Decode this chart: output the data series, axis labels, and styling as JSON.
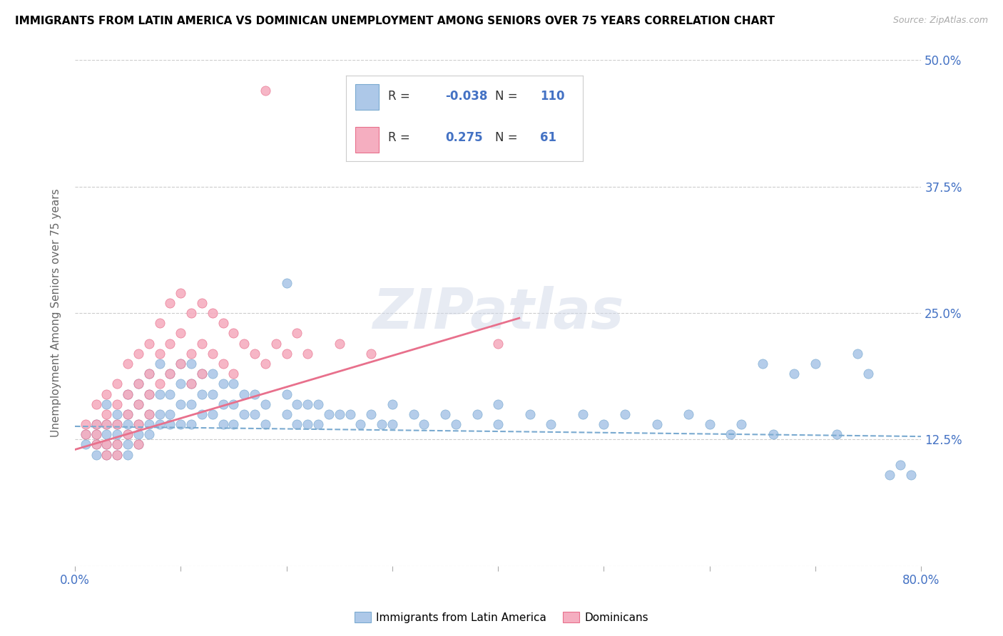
{
  "title": "IMMIGRANTS FROM LATIN AMERICA VS DOMINICAN UNEMPLOYMENT AMONG SENIORS OVER 75 YEARS CORRELATION CHART",
  "source": "Source: ZipAtlas.com",
  "ylabel": "Unemployment Among Seniors over 75 years",
  "xlim": [
    0.0,
    0.8
  ],
  "ylim": [
    0.0,
    0.5
  ],
  "R_blue": -0.038,
  "N_blue": 110,
  "R_pink": 0.275,
  "N_pink": 61,
  "blue_color": "#adc8e8",
  "pink_color": "#f5aec0",
  "blue_edge_color": "#7aaad0",
  "pink_edge_color": "#e8708c",
  "blue_line_color": "#7aaad0",
  "pink_line_color": "#e8708c",
  "legend_blue_label": "Immigrants from Latin America",
  "legend_pink_label": "Dominicans",
  "watermark": "ZIPatlas",
  "scatter_blue": [
    [
      0.01,
      0.13
    ],
    [
      0.01,
      0.12
    ],
    [
      0.02,
      0.14
    ],
    [
      0.02,
      0.13
    ],
    [
      0.02,
      0.12
    ],
    [
      0.02,
      0.11
    ],
    [
      0.03,
      0.16
    ],
    [
      0.03,
      0.14
    ],
    [
      0.03,
      0.13
    ],
    [
      0.03,
      0.12
    ],
    [
      0.03,
      0.11
    ],
    [
      0.04,
      0.15
    ],
    [
      0.04,
      0.14
    ],
    [
      0.04,
      0.13
    ],
    [
      0.04,
      0.12
    ],
    [
      0.04,
      0.11
    ],
    [
      0.05,
      0.17
    ],
    [
      0.05,
      0.15
    ],
    [
      0.05,
      0.14
    ],
    [
      0.05,
      0.13
    ],
    [
      0.05,
      0.12
    ],
    [
      0.05,
      0.11
    ],
    [
      0.06,
      0.18
    ],
    [
      0.06,
      0.16
    ],
    [
      0.06,
      0.14
    ],
    [
      0.06,
      0.13
    ],
    [
      0.06,
      0.12
    ],
    [
      0.07,
      0.19
    ],
    [
      0.07,
      0.17
    ],
    [
      0.07,
      0.15
    ],
    [
      0.07,
      0.14
    ],
    [
      0.07,
      0.13
    ],
    [
      0.08,
      0.2
    ],
    [
      0.08,
      0.17
    ],
    [
      0.08,
      0.15
    ],
    [
      0.08,
      0.14
    ],
    [
      0.09,
      0.19
    ],
    [
      0.09,
      0.17
    ],
    [
      0.09,
      0.15
    ],
    [
      0.09,
      0.14
    ],
    [
      0.1,
      0.2
    ],
    [
      0.1,
      0.18
    ],
    [
      0.1,
      0.16
    ],
    [
      0.1,
      0.14
    ],
    [
      0.11,
      0.2
    ],
    [
      0.11,
      0.18
    ],
    [
      0.11,
      0.16
    ],
    [
      0.11,
      0.14
    ],
    [
      0.12,
      0.19
    ],
    [
      0.12,
      0.17
    ],
    [
      0.12,
      0.15
    ],
    [
      0.13,
      0.19
    ],
    [
      0.13,
      0.17
    ],
    [
      0.13,
      0.15
    ],
    [
      0.14,
      0.18
    ],
    [
      0.14,
      0.16
    ],
    [
      0.14,
      0.14
    ],
    [
      0.15,
      0.18
    ],
    [
      0.15,
      0.16
    ],
    [
      0.15,
      0.14
    ],
    [
      0.16,
      0.17
    ],
    [
      0.16,
      0.15
    ],
    [
      0.17,
      0.17
    ],
    [
      0.17,
      0.15
    ],
    [
      0.18,
      0.16
    ],
    [
      0.18,
      0.14
    ],
    [
      0.2,
      0.28
    ],
    [
      0.2,
      0.17
    ],
    [
      0.2,
      0.15
    ],
    [
      0.21,
      0.16
    ],
    [
      0.21,
      0.14
    ],
    [
      0.22,
      0.16
    ],
    [
      0.22,
      0.14
    ],
    [
      0.23,
      0.16
    ],
    [
      0.23,
      0.14
    ],
    [
      0.24,
      0.15
    ],
    [
      0.25,
      0.15
    ],
    [
      0.26,
      0.15
    ],
    [
      0.27,
      0.14
    ],
    [
      0.28,
      0.15
    ],
    [
      0.29,
      0.14
    ],
    [
      0.3,
      0.16
    ],
    [
      0.3,
      0.14
    ],
    [
      0.32,
      0.15
    ],
    [
      0.33,
      0.14
    ],
    [
      0.35,
      0.15
    ],
    [
      0.36,
      0.14
    ],
    [
      0.38,
      0.15
    ],
    [
      0.4,
      0.16
    ],
    [
      0.4,
      0.14
    ],
    [
      0.43,
      0.15
    ],
    [
      0.45,
      0.14
    ],
    [
      0.48,
      0.15
    ],
    [
      0.5,
      0.14
    ],
    [
      0.52,
      0.15
    ],
    [
      0.55,
      0.14
    ],
    [
      0.58,
      0.15
    ],
    [
      0.6,
      0.14
    ],
    [
      0.62,
      0.13
    ],
    [
      0.63,
      0.14
    ],
    [
      0.65,
      0.2
    ],
    [
      0.66,
      0.13
    ],
    [
      0.68,
      0.19
    ],
    [
      0.7,
      0.2
    ],
    [
      0.72,
      0.13
    ],
    [
      0.74,
      0.21
    ],
    [
      0.75,
      0.19
    ],
    [
      0.77,
      0.09
    ],
    [
      0.78,
      0.1
    ],
    [
      0.79,
      0.09
    ]
  ],
  "scatter_pink": [
    [
      0.01,
      0.14
    ],
    [
      0.01,
      0.13
    ],
    [
      0.02,
      0.16
    ],
    [
      0.02,
      0.14
    ],
    [
      0.02,
      0.13
    ],
    [
      0.02,
      0.12
    ],
    [
      0.03,
      0.17
    ],
    [
      0.03,
      0.15
    ],
    [
      0.03,
      0.14
    ],
    [
      0.03,
      0.12
    ],
    [
      0.03,
      0.11
    ],
    [
      0.04,
      0.18
    ],
    [
      0.04,
      0.16
    ],
    [
      0.04,
      0.14
    ],
    [
      0.04,
      0.12
    ],
    [
      0.04,
      0.11
    ],
    [
      0.05,
      0.2
    ],
    [
      0.05,
      0.17
    ],
    [
      0.05,
      0.15
    ],
    [
      0.05,
      0.13
    ],
    [
      0.06,
      0.21
    ],
    [
      0.06,
      0.18
    ],
    [
      0.06,
      0.16
    ],
    [
      0.06,
      0.14
    ],
    [
      0.06,
      0.12
    ],
    [
      0.07,
      0.22
    ],
    [
      0.07,
      0.19
    ],
    [
      0.07,
      0.17
    ],
    [
      0.07,
      0.15
    ],
    [
      0.08,
      0.24
    ],
    [
      0.08,
      0.21
    ],
    [
      0.08,
      0.18
    ],
    [
      0.09,
      0.26
    ],
    [
      0.09,
      0.22
    ],
    [
      0.09,
      0.19
    ],
    [
      0.1,
      0.27
    ],
    [
      0.1,
      0.23
    ],
    [
      0.1,
      0.2
    ],
    [
      0.11,
      0.25
    ],
    [
      0.11,
      0.21
    ],
    [
      0.11,
      0.18
    ],
    [
      0.12,
      0.26
    ],
    [
      0.12,
      0.22
    ],
    [
      0.12,
      0.19
    ],
    [
      0.13,
      0.25
    ],
    [
      0.13,
      0.21
    ],
    [
      0.14,
      0.24
    ],
    [
      0.14,
      0.2
    ],
    [
      0.15,
      0.23
    ],
    [
      0.15,
      0.19
    ],
    [
      0.16,
      0.22
    ],
    [
      0.17,
      0.21
    ],
    [
      0.18,
      0.47
    ],
    [
      0.18,
      0.2
    ],
    [
      0.19,
      0.22
    ],
    [
      0.2,
      0.21
    ],
    [
      0.21,
      0.23
    ],
    [
      0.22,
      0.21
    ],
    [
      0.25,
      0.22
    ],
    [
      0.28,
      0.21
    ],
    [
      0.4,
      0.22
    ]
  ],
  "blue_trendline": {
    "x_start": 0.0,
    "x_end": 0.8,
    "y_start": 0.138,
    "y_end": 0.128
  },
  "pink_trendline": {
    "x_start": 0.0,
    "x_end": 0.42,
    "y_start": 0.115,
    "y_end": 0.245
  }
}
